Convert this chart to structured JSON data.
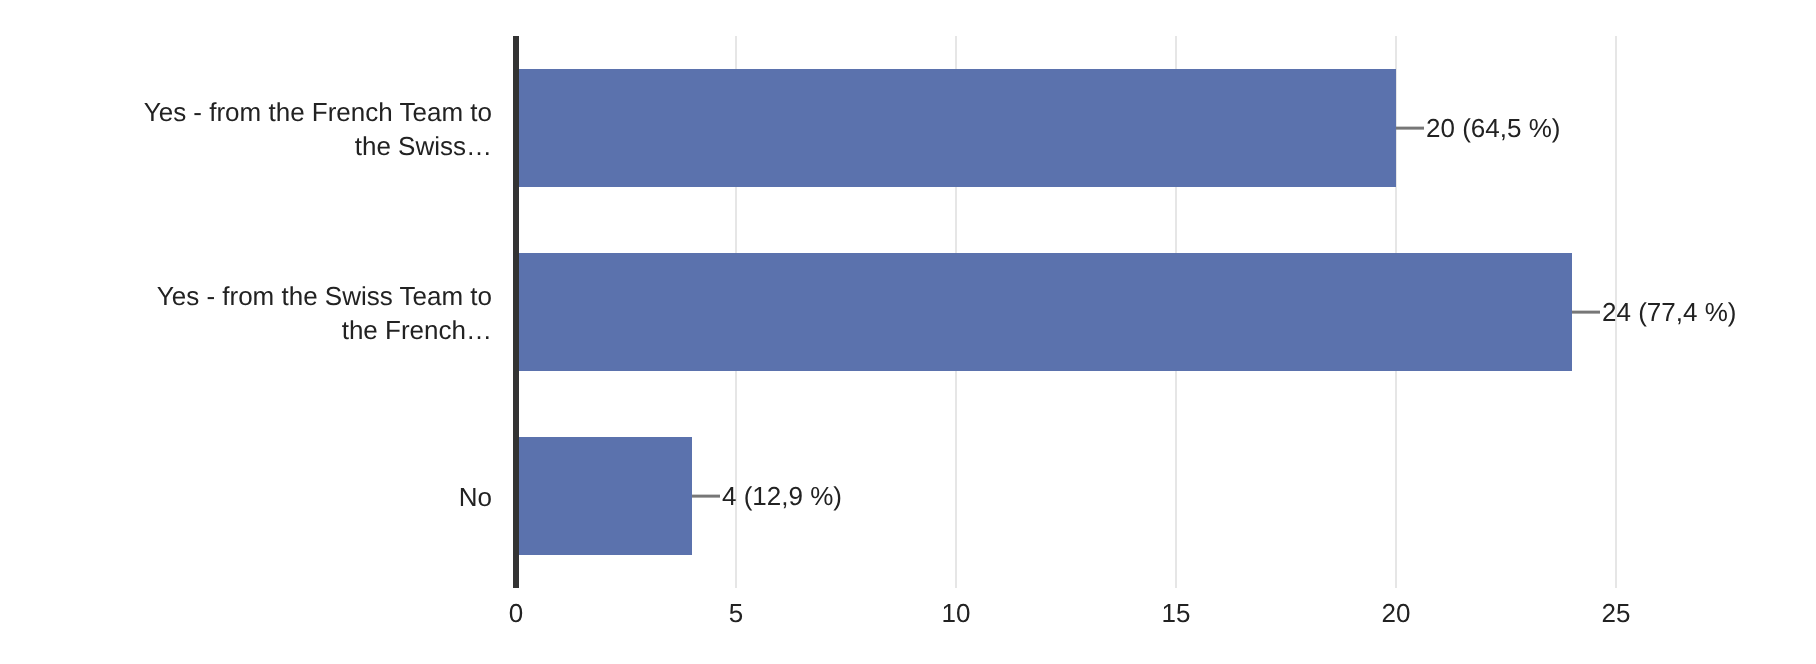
{
  "chart_data": {
    "type": "bar",
    "orientation": "horizontal",
    "categories": [
      "Yes - from the French Team to the Swiss…",
      "Yes - from the Swiss Team to the French…",
      "No"
    ],
    "values": [
      20,
      24,
      4
    ],
    "color": "#5b72ad",
    "value_labels": [
      "20 (64,5 %)",
      "24 (77,4 %)",
      "4 (12,9 %)"
    ],
    "xlim": [
      0,
      25
    ],
    "xticks": [
      0,
      5,
      10,
      15,
      20,
      25
    ],
    "grid": "x"
  }
}
